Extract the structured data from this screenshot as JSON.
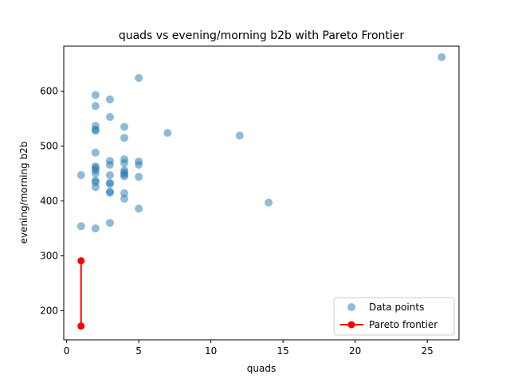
{
  "chart_data": {
    "type": "scatter",
    "title": "quads vs evening/morning b2b with Pareto Frontier",
    "xlabel": "quads",
    "ylabel": "evening/morning b2b",
    "xlim": [
      -0.2,
      27.2
    ],
    "ylim": [
      147,
      682
    ],
    "xticks": [
      0,
      5,
      10,
      15,
      20,
      25
    ],
    "yticks": [
      200,
      300,
      400,
      500,
      600
    ],
    "xtick_labels": [
      "0",
      "5",
      "10",
      "15",
      "20",
      "25"
    ],
    "ytick_labels": [
      "200",
      "300",
      "400",
      "500",
      "600"
    ],
    "grid": false,
    "legend_position": "lower-right",
    "series": [
      {
        "name": "Data points",
        "kind": "scatter",
        "color": "#1f77b4",
        "points": [
          [
            1,
            447
          ],
          [
            1,
            354
          ],
          [
            2,
            593
          ],
          [
            2,
            573
          ],
          [
            2,
            537
          ],
          [
            2,
            530
          ],
          [
            2,
            528
          ],
          [
            2,
            488
          ],
          [
            2,
            463
          ],
          [
            2,
            460
          ],
          [
            2,
            456
          ],
          [
            2,
            450
          ],
          [
            2,
            437
          ],
          [
            2,
            434
          ],
          [
            2,
            425
          ],
          [
            2,
            350
          ],
          [
            3,
            585
          ],
          [
            3,
            553
          ],
          [
            3,
            473
          ],
          [
            3,
            466
          ],
          [
            3,
            447
          ],
          [
            3,
            433
          ],
          [
            3,
            431
          ],
          [
            3,
            417
          ],
          [
            3,
            415
          ],
          [
            3,
            360
          ],
          [
            4,
            535
          ],
          [
            4,
            515
          ],
          [
            4,
            476
          ],
          [
            4,
            469
          ],
          [
            4,
            456
          ],
          [
            4,
            452
          ],
          [
            4,
            448
          ],
          [
            4,
            445
          ],
          [
            4,
            414
          ],
          [
            4,
            404
          ],
          [
            5,
            624
          ],
          [
            5,
            472
          ],
          [
            5,
            466
          ],
          [
            5,
            444
          ],
          [
            5,
            386
          ],
          [
            7,
            524
          ],
          [
            12,
            519
          ],
          [
            14,
            397
          ],
          [
            26,
            662
          ]
        ]
      },
      {
        "name": "Pareto frontier",
        "kind": "line",
        "color": "#ff0000",
        "points": [
          [
            1,
            291
          ],
          [
            1,
            172
          ]
        ]
      }
    ]
  }
}
